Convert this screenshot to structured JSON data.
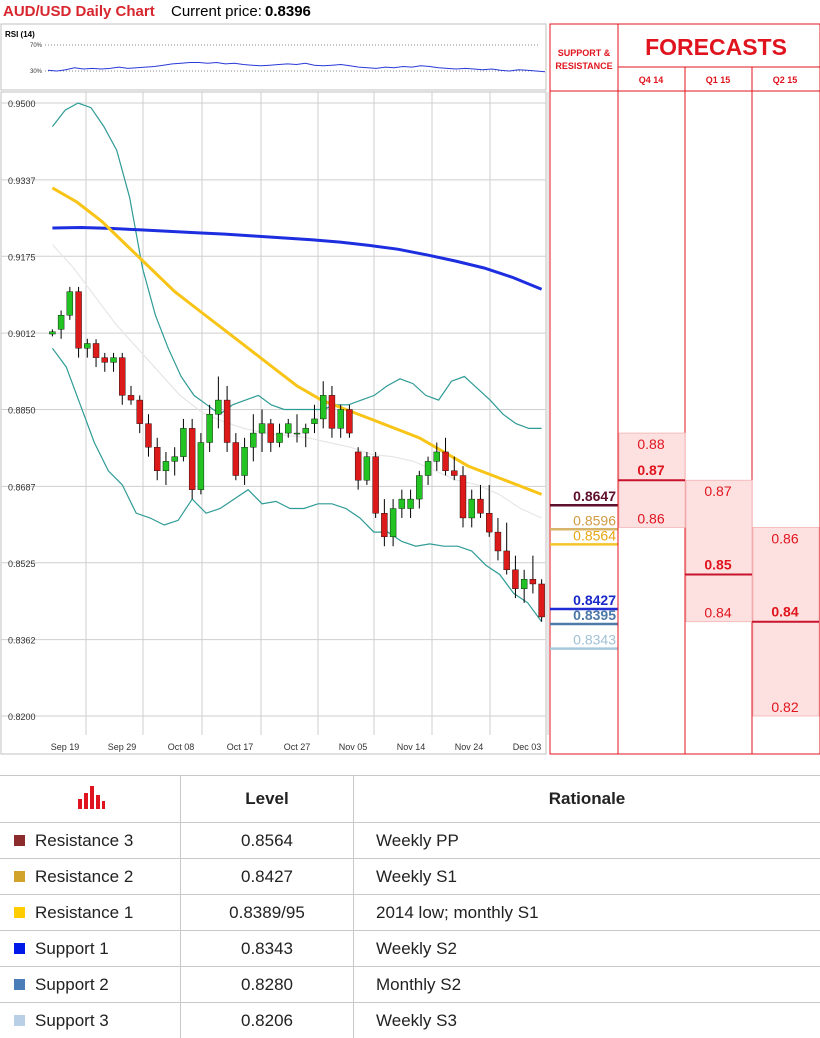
{
  "header": {
    "title": "AUD/USD Daily Chart",
    "price_label": "Current price:",
    "price_value": "0.8396"
  },
  "rsi": {
    "label": "RSI (14)",
    "upper_label": "70%",
    "lower_label": "30%",
    "values": [
      31,
      30,
      32,
      35,
      33,
      34,
      33,
      34,
      36,
      34,
      35,
      36,
      37,
      39,
      41,
      42,
      43,
      43,
      42,
      43,
      41,
      42,
      40,
      39,
      38,
      39,
      40,
      41,
      40,
      42,
      39,
      38,
      39,
      40,
      38,
      36,
      35,
      34,
      36,
      35,
      37,
      36,
      38,
      37,
      35,
      34,
      33,
      34,
      33,
      32,
      33,
      31,
      30,
      32,
      31,
      30,
      29
    ]
  },
  "sr_panel": {
    "title_line1": "SUPPORT &",
    "title_line2": "RESISTANCE"
  },
  "forecasts": {
    "title": "FORECASTS",
    "columns": [
      {
        "label": "Q4 14",
        "labels": [
          "0.88",
          "0.87",
          "0.86"
        ],
        "mid_value": 0.87,
        "band": [
          0.86,
          0.88
        ]
      },
      {
        "label": "Q1 15",
        "labels": [
          "0.87",
          "0.85",
          "0.84"
        ],
        "mid_value": 0.85,
        "band": [
          0.84,
          0.87
        ]
      },
      {
        "label": "Q2 15",
        "labels": [
          "0.86",
          "0.84",
          "0.82"
        ],
        "mid_value": 0.84,
        "band": [
          0.82,
          0.86
        ]
      }
    ]
  },
  "chart_data": {
    "type": "candlestick",
    "ylim": [
      0.82,
      0.95
    ],
    "y_ticks": [
      "0.9500",
      "0.9337",
      "0.9175",
      "0.9012",
      "0.8850",
      "0.8687",
      "0.8525",
      "0.8362",
      "0.8200"
    ],
    "x_ticks": [
      "Sep 19",
      "Sep 29",
      "Oct 08",
      "Oct 17",
      "Oct 27",
      "Nov 05",
      "Nov 14",
      "Nov 24",
      "Dec 03"
    ],
    "candles": [
      [
        0.901,
        0.902,
        0.9005,
        0.9015
      ],
      [
        0.902,
        0.906,
        0.9,
        0.905
      ],
      [
        0.905,
        0.911,
        0.904,
        0.91
      ],
      [
        0.91,
        0.911,
        0.896,
        0.898
      ],
      [
        0.898,
        0.9,
        0.896,
        0.899
      ],
      [
        0.899,
        0.8999,
        0.894,
        0.896
      ],
      [
        0.896,
        0.897,
        0.893,
        0.895
      ],
      [
        0.895,
        0.897,
        0.893,
        0.896
      ],
      [
        0.896,
        0.897,
        0.886,
        0.888
      ],
      [
        0.888,
        0.89,
        0.886,
        0.887
      ],
      [
        0.887,
        0.888,
        0.88,
        0.882
      ],
      [
        0.882,
        0.884,
        0.875,
        0.877
      ],
      [
        0.877,
        0.879,
        0.87,
        0.872
      ],
      [
        0.872,
        0.876,
        0.869,
        0.874
      ],
      [
        0.874,
        0.877,
        0.871,
        0.875
      ],
      [
        0.875,
        0.883,
        0.874,
        0.881
      ],
      [
        0.881,
        0.883,
        0.866,
        0.868
      ],
      [
        0.868,
        0.88,
        0.867,
        0.878
      ],
      [
        0.878,
        0.886,
        0.876,
        0.884
      ],
      [
        0.884,
        0.892,
        0.881,
        0.887
      ],
      [
        0.887,
        0.89,
        0.876,
        0.878
      ],
      [
        0.878,
        0.88,
        0.87,
        0.871
      ],
      [
        0.871,
        0.879,
        0.869,
        0.877
      ],
      [
        0.877,
        0.884,
        0.874,
        0.88
      ],
      [
        0.88,
        0.885,
        0.876,
        0.882
      ],
      [
        0.882,
        0.883,
        0.876,
        0.878
      ],
      [
        0.878,
        0.882,
        0.877,
        0.88
      ],
      [
        0.88,
        0.883,
        0.879,
        0.882
      ],
      [
        0.88,
        0.884,
        0.878,
        0.88
      ],
      [
        0.88,
        0.882,
        0.877,
        0.881
      ],
      [
        0.882,
        0.886,
        0.88,
        0.883
      ],
      [
        0.883,
        0.891,
        0.881,
        0.888
      ],
      [
        0.888,
        0.89,
        0.879,
        0.881
      ],
      [
        0.881,
        0.886,
        0.879,
        0.885
      ],
      [
        0.885,
        0.886,
        0.879,
        0.88
      ],
      [
        0.876,
        0.877,
        0.868,
        0.87
      ],
      [
        0.87,
        0.876,
        0.869,
        0.875
      ],
      [
        0.875,
        0.876,
        0.862,
        0.863
      ],
      [
        0.863,
        0.866,
        0.856,
        0.858
      ],
      [
        0.858,
        0.866,
        0.856,
        0.864
      ],
      [
        0.864,
        0.868,
        0.862,
        0.866
      ],
      [
        0.864,
        0.868,
        0.862,
        0.866
      ],
      [
        0.866,
        0.872,
        0.864,
        0.871
      ],
      [
        0.871,
        0.875,
        0.869,
        0.874
      ],
      [
        0.874,
        0.878,
        0.872,
        0.876
      ],
      [
        0.876,
        0.879,
        0.871,
        0.872
      ],
      [
        0.872,
        0.875,
        0.87,
        0.871
      ],
      [
        0.871,
        0.873,
        0.86,
        0.862
      ],
      [
        0.862,
        0.868,
        0.86,
        0.866
      ],
      [
        0.866,
        0.869,
        0.862,
        0.863
      ],
      [
        0.863,
        0.869,
        0.858,
        0.859
      ],
      [
        0.859,
        0.862,
        0.853,
        0.855
      ],
      [
        0.855,
        0.861,
        0.85,
        0.851
      ],
      [
        0.851,
        0.854,
        0.845,
        0.847
      ],
      [
        0.847,
        0.851,
        0.844,
        0.849
      ],
      [
        0.849,
        0.854,
        0.846,
        0.848
      ],
      [
        0.848,
        0.849,
        0.84,
        0.841
      ]
    ],
    "bollinger_upper": [
      0.945,
      0.9485,
      0.95,
      0.949,
      0.945,
      0.94,
      0.93,
      0.915,
      0.905,
      0.898,
      0.892,
      0.888,
      0.886,
      0.884,
      0.886,
      0.887,
      0.888,
      0.886,
      0.885,
      0.885,
      0.885,
      0.885,
      0.886,
      0.886,
      0.887,
      0.888,
      0.89,
      0.8915,
      0.8905,
      0.888,
      0.887,
      0.891,
      0.892,
      0.8895,
      0.887,
      0.884,
      0.882,
      0.881,
      0.881
    ],
    "bollinger_lower": [
      0.898,
      0.894,
      0.886,
      0.878,
      0.872,
      0.869,
      0.863,
      0.862,
      0.8605,
      0.8615,
      0.866,
      0.863,
      0.864,
      0.866,
      0.868,
      0.865,
      0.8655,
      0.864,
      0.864,
      0.865,
      0.865,
      0.864,
      0.862,
      0.859,
      0.859,
      0.857,
      0.856,
      0.8565,
      0.856,
      0.856,
      0.855,
      0.852,
      0.85,
      0.846,
      0.844,
      0.84
    ],
    "bollinger_middle": [
      0.92,
      0.915,
      0.909,
      0.903,
      0.898,
      0.893,
      0.888,
      0.8845,
      0.8825,
      0.881,
      0.88,
      0.8795,
      0.879,
      0.878,
      0.877,
      0.8755,
      0.875,
      0.874,
      0.872,
      0.87,
      0.869,
      0.867,
      0.864,
      0.862
    ],
    "ma_yellow": [
      0.932,
      0.929,
      0.925,
      0.92,
      0.915,
      0.91,
      0.906,
      0.902,
      0.898,
      0.894,
      0.89,
      0.887,
      0.885,
      0.883,
      0.881,
      0.879,
      0.876,
      0.873,
      0.871,
      0.869,
      0.867
    ],
    "ma_blue": [
      0.9235,
      0.9236,
      0.9234,
      0.9231,
      0.9228,
      0.9225,
      0.9222,
      0.9218,
      0.9214,
      0.921,
      0.9205,
      0.9198,
      0.919,
      0.9178,
      0.9165,
      0.915,
      0.913,
      0.9105
    ],
    "sr_levels": [
      {
        "value": 0.8647,
        "label": "0.8647",
        "color": "#5e0f2c",
        "text_color": "#5e0f2c"
      },
      {
        "value": 0.8596,
        "label": "0.8596",
        "color": "#d7b46a",
        "text_color": "#d29b45"
      },
      {
        "value": 0.8564,
        "label": "0.8564",
        "color": "#f6c32a",
        "text_color": "#e8a714"
      },
      {
        "value": 0.8427,
        "label": "0.8427",
        "color": "#1f2bd4",
        "text_color": "#1a29c9"
      },
      {
        "value": 0.8395,
        "label": "0.8395",
        "color": "#4e7aa8",
        "text_color": "#4d79a6"
      },
      {
        "value": 0.8343,
        "label": "0.8343",
        "color": "#a8c8dc",
        "text_color": "#9fc1d6"
      }
    ]
  },
  "table": {
    "col_level": "Level",
    "col_rationale": "Rationale",
    "rows": [
      {
        "name": "Resistance 3",
        "level": "0.8564",
        "rationale": "Weekly PP",
        "color": "#8b2b2b"
      },
      {
        "name": "Resistance 2",
        "level": "0.8427",
        "rationale": "Weekly S1",
        "color": "#d2a32a"
      },
      {
        "name": "Resistance 1",
        "level": "0.8389/95",
        "rationale": "2014 low; monthly S1",
        "color": "#ffcc00"
      },
      {
        "name": "Support 1",
        "level": "0.8343",
        "rationale": "Weekly S2",
        "color": "#0018e8"
      },
      {
        "name": "Support 2",
        "level": "0.8280",
        "rationale": "Monthly S2",
        "color": "#4a7cb8"
      },
      {
        "name": "Support 3",
        "level": "0.8206",
        "rationale": "Weekly S3",
        "color": "#b8cfe6"
      }
    ]
  }
}
